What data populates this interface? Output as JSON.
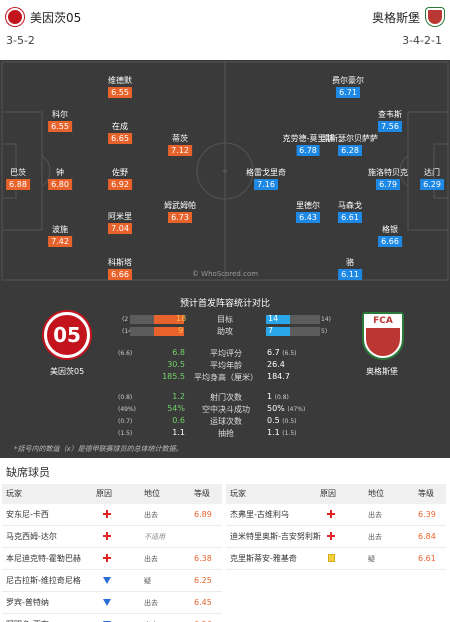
{
  "header": {
    "home_team": "美因茨05",
    "away_team": "奥格斯堡",
    "home_formation": "3-5-2",
    "away_formation": "3-4-2-1"
  },
  "pitch": {
    "watermark": "© WhoScored.com",
    "home_players": [
      {
        "name": "维德默",
        "rating": "6.55"
      },
      {
        "name": "科尔",
        "rating": "6.55"
      },
      {
        "name": "在成",
        "rating": "6.65"
      },
      {
        "name": "蒂茨",
        "rating": "7.12"
      },
      {
        "name": "巴茨",
        "rating": "6.88"
      },
      {
        "name": "钟",
        "rating": "6.80"
      },
      {
        "name": "佐野",
        "rating": "6.92"
      },
      {
        "name": "姆武姆帕",
        "rating": "6.73"
      },
      {
        "name": "阿米里",
        "rating": "7.04"
      },
      {
        "name": "波施",
        "rating": "7.42"
      },
      {
        "name": "科斯塔",
        "rating": "6.66"
      }
    ],
    "away_players": [
      {
        "name": "费尔豪尔",
        "rating": "6.71"
      },
      {
        "name": "查韦斯",
        "rating": "7.56"
      },
      {
        "name": "克劳德-莫里斯",
        "rating": "6.78"
      },
      {
        "name": "凯斯瑟尔贝萨萨",
        "rating": "6.28"
      },
      {
        "name": "格雷戈里奇",
        "rating": "7.16"
      },
      {
        "name": "施洛特贝克",
        "rating": "6.79"
      },
      {
        "name": "达门",
        "rating": "6.29"
      },
      {
        "name": "里德尔",
        "rating": "6.43"
      },
      {
        "name": "马森戈",
        "rating": "6.61"
      },
      {
        "name": "格银",
        "rating": "6.66"
      },
      {
        "name": "骆",
        "rating": "6.11"
      }
    ]
  },
  "stats": {
    "title": "预计首发阵容统计对比",
    "bars": [
      {
        "label": "目标",
        "home_value": "18",
        "home_avg": "(2",
        "away_value": "14",
        "away_avg": "14)",
        "home_fraction": 0.56,
        "away_fraction": 0.44
      },
      {
        "label": "助攻",
        "home_value": "9",
        "home_avg": "(14",
        "away_value": "7",
        "away_avg": "5)",
        "home_fraction": 0.56,
        "away_fraction": 0.44
      }
    ],
    "rows": [
      {
        "home_avg": "(6.6)",
        "home": "6.8",
        "label": "平均评分",
        "away": "6.7",
        "away_avg": "(6.5)",
        "home_green": true
      },
      {
        "home_avg": "",
        "home": "30.5",
        "label": "平均年龄",
        "away": "26.4",
        "away_avg": "",
        "home_green": true
      },
      {
        "home_avg": "",
        "home": "185.5",
        "label": "平均身高（厘米）",
        "away": "184.7",
        "away_avg": "",
        "home_green": true
      },
      {
        "home_avg": "(0.8)",
        "home": "1.2",
        "label": "射门次数",
        "away": "1",
        "away_avg": "(0.8)",
        "home_green": true
      },
      {
        "home_avg": "(49%)",
        "home": "54%",
        "label": "空中决斗成功",
        "away": "50%",
        "away_avg": "(47%)",
        "home_green": true
      },
      {
        "home_avg": "(0.7)",
        "home": "0.6",
        "label": "运球次数",
        "away": "0.5",
        "away_avg": "(0.5)",
        "home_green": true
      },
      {
        "home_avg": "(1.5)",
        "home": "1.1",
        "label": "抽抢",
        "away": "1.1",
        "away_avg": "(1.5)",
        "home_green": false
      }
    ],
    "footnote": "*括号内的数值（x）是德甲联赛球员的总体统计数据。"
  },
  "missing": {
    "title": "缺席球员",
    "headers": {
      "player": "玩家",
      "reason": "原因",
      "position": "地位",
      "rating": "等级"
    },
    "home": [
      {
        "name": "安东尼-卡西",
        "reason": "injury",
        "position": "出去",
        "rating": "6.89",
        "pos_italic": false
      },
      {
        "name": "马克西姆-达尔",
        "reason": "injury",
        "position": "不适用",
        "rating": "",
        "pos_italic": true
      },
      {
        "name": "本尼迪克特-霍勒巴赫",
        "reason": "injury",
        "position": "出去",
        "rating": "6.38",
        "pos_italic": false
      },
      {
        "name": "尼古拉斯-维拉奇尼格",
        "reason": "doubt",
        "position": "疑",
        "rating": "6.25",
        "pos_italic": false
      },
      {
        "name": "罗宾-普特纳",
        "reason": "doubt",
        "position": "出去",
        "rating": "6.45",
        "pos_italic": false
      },
      {
        "name": "阿明多-西布",
        "reason": "doubt",
        "position": "出去",
        "rating": "6.26",
        "pos_italic": false
      }
    ],
    "away": [
      {
        "name": "杰弗里-古维利乌",
        "reason": "injury",
        "position": "出去",
        "rating": "6.39",
        "pos_italic": false
      },
      {
        "name": "迪米特里奥斯-吉安努利斯",
        "reason": "injury",
        "position": "出去",
        "rating": "6.84",
        "pos_italic": false
      },
      {
        "name": "克里斯蒂安-雅基奇",
        "reason": "card",
        "position": "疑",
        "rating": "6.61",
        "pos_italic": false
      }
    ]
  },
  "colors": {
    "home_accent": "#e8632b",
    "away_accent": "#1e88e5",
    "pitch": "#3a3a3a"
  }
}
